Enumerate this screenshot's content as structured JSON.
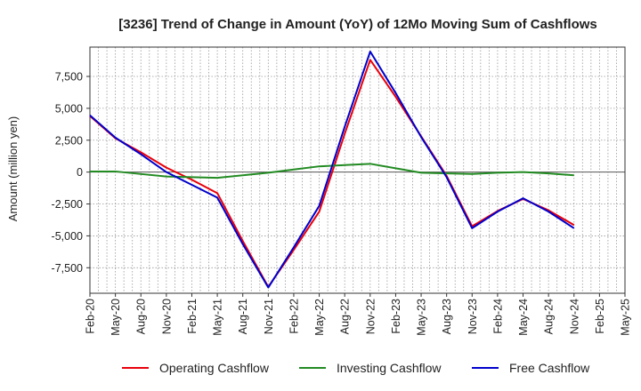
{
  "chart_data": {
    "type": "line",
    "title": "[3236]  Trend of Change in Amount (YoY) of 12Mo Moving Sum of Cashflows",
    "xlabel": "",
    "ylabel": "Amount (million yen)",
    "ylim": [
      -9500,
      9800
    ],
    "yticks": [
      -7500,
      -5000,
      -2500,
      0,
      2500,
      5000,
      7500
    ],
    "ytick_labels": [
      "-7,500",
      "-5,000",
      "-2,500",
      "0",
      "2,500",
      "5,000",
      "7,500"
    ],
    "categories": [
      "Feb-20",
      "May-20",
      "Aug-20",
      "Nov-20",
      "Feb-21",
      "May-21",
      "Aug-21",
      "Nov-21",
      "Feb-22",
      "May-22",
      "Aug-22",
      "Nov-22",
      "Feb-23",
      "May-23",
      "Aug-23",
      "Nov-23",
      "Feb-24",
      "May-24",
      "Aug-24",
      "Nov-24",
      "Feb-25",
      "May-25"
    ],
    "grid": true,
    "legend_position": "bottom",
    "series": [
      {
        "name": "Operating Cashflow",
        "color": "#e8000b",
        "values": [
          4400,
          2650,
          1550,
          350,
          -600,
          -1650,
          -5400,
          -9000,
          -6100,
          -3100,
          3000,
          8800,
          5900,
          2800,
          -300,
          -4250,
          -3050,
          -2100,
          -3000,
          -4150,
          null,
          null
        ]
      },
      {
        "name": "Investing Cashflow",
        "color": "#228b22",
        "values": [
          50,
          50,
          -150,
          -350,
          -400,
          -450,
          -250,
          -50,
          200,
          450,
          550,
          650,
          300,
          -50,
          -100,
          -150,
          -50,
          0,
          -100,
          -250,
          null,
          null
        ]
      },
      {
        "name": "Free Cashflow",
        "color": "#0000cc",
        "values": [
          4450,
          2700,
          1400,
          0,
          -1000,
          -2000,
          -5650,
          -9050,
          -5900,
          -2650,
          3550,
          9450,
          6200,
          2750,
          -400,
          -4400,
          -3100,
          -2050,
          -3100,
          -4400,
          null,
          null
        ]
      }
    ]
  }
}
